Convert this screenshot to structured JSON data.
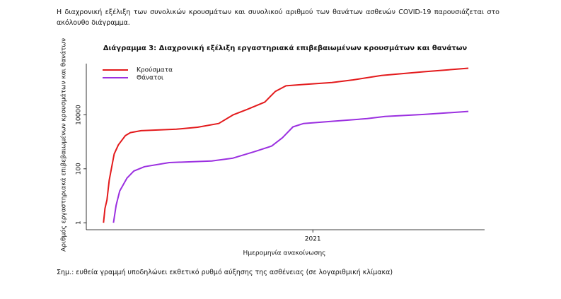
{
  "intro": "Η διαχρονική εξέλιξη των συνολικών κρουσμάτων και συνολικού αριθμού των θανάτων ασθενών COVID-19 παρουσιάζεται στο ακόλουθο διάγραμμα.",
  "chart_data": {
    "type": "line",
    "title": "Διάγραμμα 3: Διαχρονική εξέλιξη εργαστηριακά επιβεβαιωμένων κρουσμάτων και θανάτων",
    "x_label": "Ημερομηνία ανακοίνωσης",
    "y_label": "Αριθμός εργαστηριακά επιβεβαιωμένων κρουσμάτων και θανάτων",
    "log_y": true,
    "xlim": [
      2020.09,
      2021.69
    ],
    "xticks": [
      {
        "value": 2021,
        "label": "2021"
      }
    ],
    "ylim": [
      0.55,
      800000
    ],
    "yticks": [
      1,
      100,
      10000
    ],
    "legend": "top-left",
    "series": [
      {
        "name": "Κρούσματα",
        "color": "#e31a1c",
        "x": [
          2020.159,
          2020.165,
          2020.173,
          2020.182,
          2020.19,
          2020.202,
          2020.219,
          2020.247,
          2020.267,
          2020.31,
          2020.452,
          2020.537,
          2020.622,
          2020.679,
          2020.736,
          2020.807,
          2020.849,
          2020.892,
          2020.963,
          2021.077,
          2021.162,
          2021.276,
          2021.446,
          2021.625
        ],
        "values": [
          1,
          3.4,
          7,
          38,
          94,
          356,
          780,
          1700,
          2200,
          2600,
          2950,
          3500,
          4800,
          10000,
          16000,
          30000,
          74000,
          120000,
          135000,
          160000,
          200000,
          290000,
          400000,
          540000
        ]
      },
      {
        "name": "Θάνατοι",
        "color": "#9b30e0",
        "x": [
          2020.199,
          2020.21,
          2020.224,
          2020.253,
          2020.281,
          2020.324,
          2020.423,
          2020.594,
          2020.679,
          2020.764,
          2020.835,
          2020.878,
          2020.92,
          2020.963,
          2021.077,
          2021.219,
          2021.29,
          2021.446,
          2021.625
        ],
        "values": [
          1,
          4.5,
          15,
          45,
          83,
          120,
          170,
          195,
          250,
          430,
          700,
          1430,
          3600,
          4800,
          5800,
          7300,
          8800,
          10400,
          13500
        ]
      }
    ]
  },
  "note": "Σημ.: ευθεία γραμμή υποδηλώνει εκθετικό ρυθμό αύξησης της ασθένειας (σε λογαριθμική κλίμακα)"
}
